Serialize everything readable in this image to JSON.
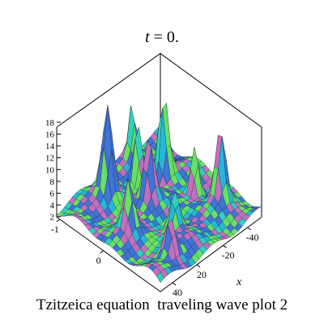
{
  "title": "t = 0.",
  "caption": "Tzitzeica equation  traveling wave plot 2",
  "chart_data": {
    "type": "surface3d",
    "title": "t = 0.",
    "z_ticks": [
      "2",
      "4",
      "6",
      "8",
      "10",
      "12",
      "14",
      "16",
      "18"
    ],
    "z_range": [
      2,
      18
    ],
    "x_label": "x",
    "x_ticks": [
      "-40",
      "-20",
      "20",
      "40"
    ],
    "y_ticks": [
      "-1",
      "0"
    ],
    "grid": false,
    "colors": {
      "surface_main": "#2fd0c0",
      "surface_alt": "#3f74d8",
      "surface_accent": "#66e066",
      "surface_highlight": "#c070c0",
      "mesh": "#1a1a1a",
      "box": "#000000"
    }
  }
}
